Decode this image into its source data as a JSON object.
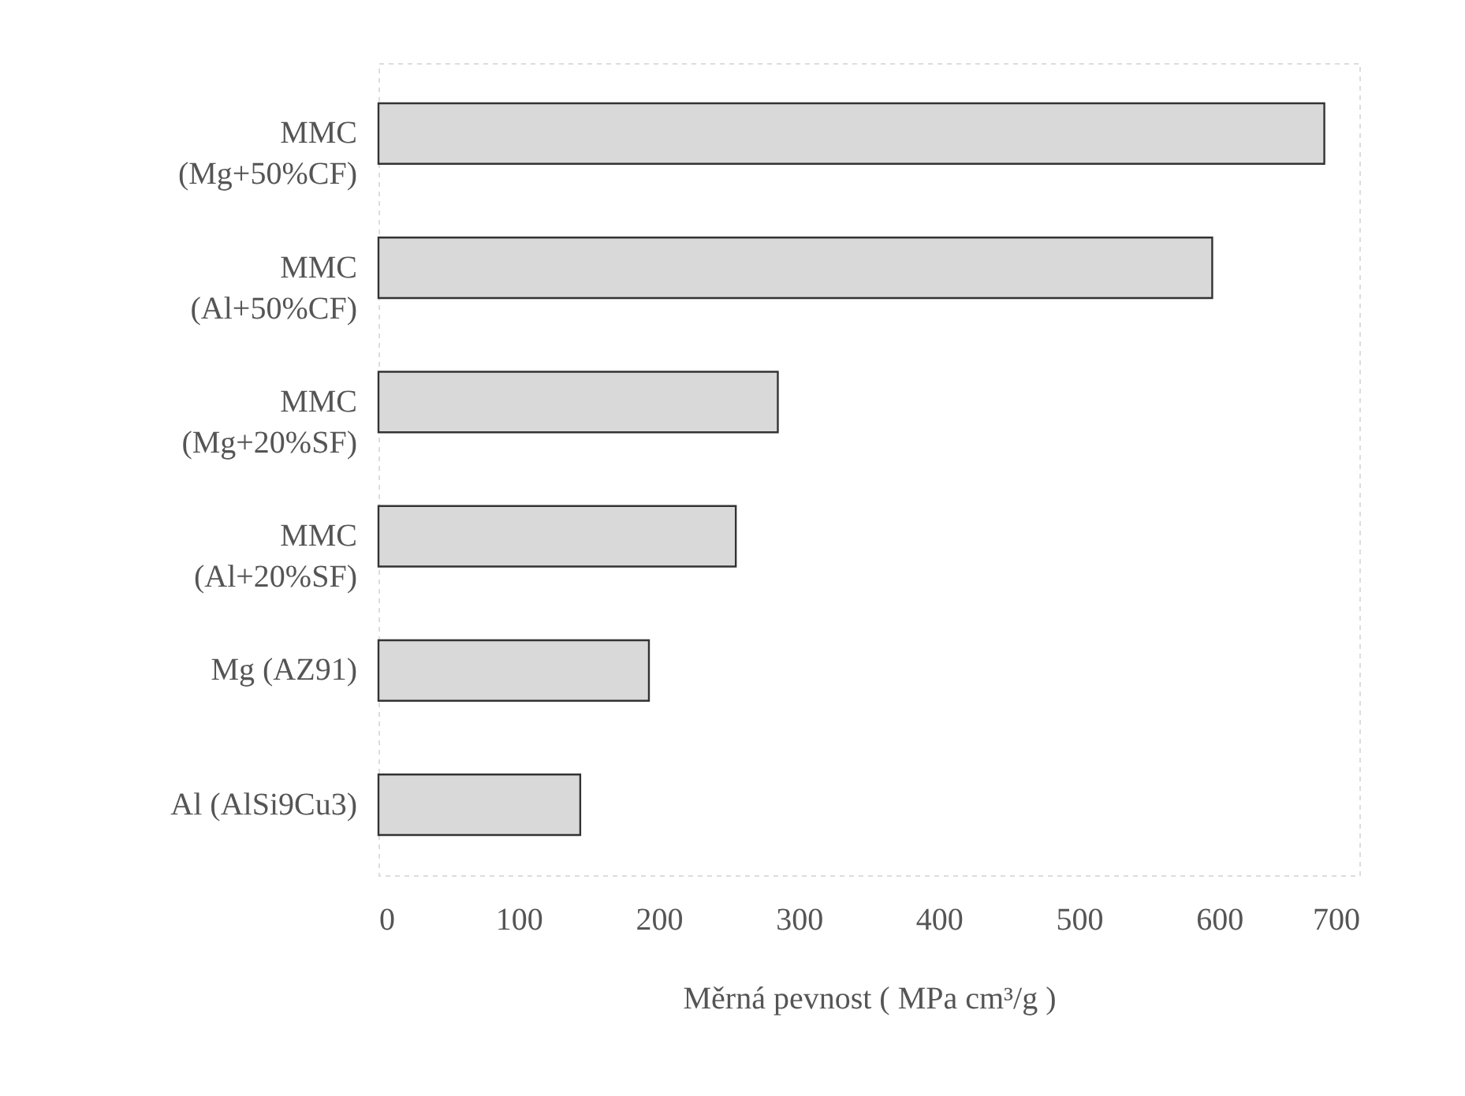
{
  "chart_data": {
    "type": "bar",
    "orientation": "horizontal",
    "xlabel": "Měrná pevnost ( MPa cm³/g )",
    "categories": [
      "MMC\n(Mg+50%CF)",
      "MMC\n(Al+50%CF)",
      "MMC\n(Mg+20%SF)",
      "MMC\n(Al+20%SF)",
      "Mg (AZ91)",
      "Al (AlSi9Cu3)"
    ],
    "values": [
      675,
      595,
      285,
      255,
      193,
      144
    ],
    "color": "#d9d9d9",
    "xlim": [
      0,
      700
    ],
    "xticks": [
      0,
      100,
      200,
      300,
      400,
      500,
      600,
      700
    ],
    "grid": false
  }
}
